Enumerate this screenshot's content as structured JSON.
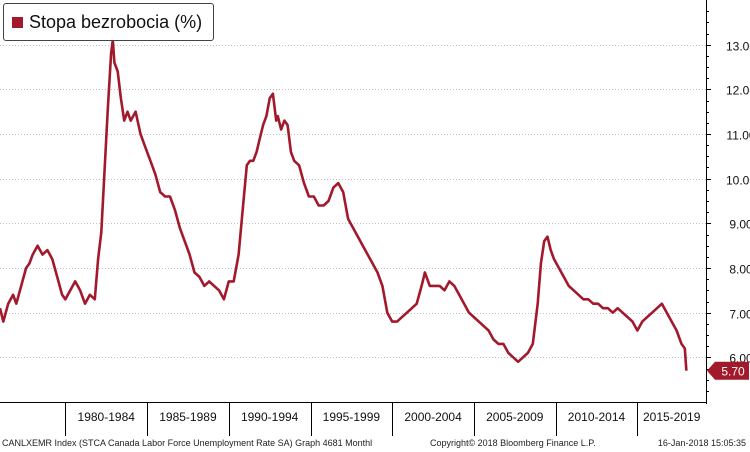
{
  "chart_data": {
    "type": "line",
    "title": "",
    "xlabel": "",
    "ylabel": "",
    "ylim": [
      5.0,
      14.0
    ],
    "y_ticks": [
      "6.00",
      "7.00",
      "8.00",
      "9.00",
      "10.00",
      "11.00",
      "12.00",
      "13.00"
    ],
    "period_labels": [
      "1980-1984",
      "1985-1989",
      "1990-1994",
      "1995-1999",
      "2000-2004",
      "2005-2009",
      "2010-2014",
      "2015-2019"
    ],
    "x_range": [
      1976.0,
      2019.2
    ],
    "grid": "horizontal dotted",
    "line_color": "#a3192c",
    "last_value_label": "5.70",
    "series": [
      {
        "name": "Stopa bezrobocia (%)",
        "x": [
          1976.0,
          1976.2,
          1976.5,
          1976.8,
          1977.0,
          1977.3,
          1977.6,
          1977.8,
          1978.0,
          1978.3,
          1978.6,
          1978.9,
          1979.2,
          1979.5,
          1979.8,
          1980.0,
          1980.3,
          1980.6,
          1980.9,
          1981.2,
          1981.5,
          1981.8,
          1982.0,
          1982.2,
          1982.4,
          1982.6,
          1982.8,
          1982.9,
          1983.0,
          1983.2,
          1983.4,
          1983.6,
          1983.8,
          1984.0,
          1984.3,
          1984.6,
          1984.9,
          1985.2,
          1985.5,
          1985.8,
          1986.1,
          1986.4,
          1986.7,
          1987.0,
          1987.3,
          1987.6,
          1987.9,
          1988.2,
          1988.5,
          1988.8,
          1989.1,
          1989.4,
          1989.7,
          1990.0,
          1990.3,
          1990.6,
          1990.9,
          1991.1,
          1991.3,
          1991.5,
          1991.7,
          1991.9,
          1992.1,
          1992.3,
          1992.5,
          1992.7,
          1992.9,
          1993.0,
          1993.2,
          1993.4,
          1993.6,
          1993.8,
          1994.0,
          1994.3,
          1994.6,
          1994.9,
          1995.2,
          1995.5,
          1995.8,
          1996.1,
          1996.4,
          1996.7,
          1997.0,
          1997.3,
          1997.6,
          1997.9,
          1998.2,
          1998.5,
          1998.8,
          1999.1,
          1999.4,
          1999.7,
          2000.0,
          2000.3,
          2000.6,
          2000.9,
          2001.2,
          2001.5,
          2001.8,
          2002.0,
          2002.3,
          2002.6,
          2002.9,
          2003.2,
          2003.5,
          2003.8,
          2004.1,
          2004.4,
          2004.7,
          2005.0,
          2005.3,
          2005.6,
          2005.9,
          2006.2,
          2006.5,
          2006.8,
          2007.1,
          2007.4,
          2007.7,
          2008.0,
          2008.3,
          2008.6,
          2008.9,
          2009.1,
          2009.3,
          2009.5,
          2009.7,
          2009.9,
          2010.2,
          2010.5,
          2010.8,
          2011.1,
          2011.4,
          2011.7,
          2012.0,
          2012.3,
          2012.6,
          2012.9,
          2013.2,
          2013.5,
          2013.8,
          2014.1,
          2014.4,
          2014.7,
          2015.0,
          2015.3,
          2015.6,
          2015.9,
          2016.2,
          2016.5,
          2016.8,
          2017.1,
          2017.4,
          2017.7,
          2017.9,
          2018.0
        ],
        "values": [
          7.1,
          6.8,
          7.2,
          7.4,
          7.2,
          7.6,
          8.0,
          8.1,
          8.3,
          8.5,
          8.3,
          8.4,
          8.2,
          7.8,
          7.4,
          7.3,
          7.5,
          7.7,
          7.5,
          7.2,
          7.4,
          7.3,
          8.2,
          8.8,
          10.2,
          11.6,
          12.8,
          13.1,
          12.6,
          12.4,
          11.8,
          11.3,
          11.5,
          11.3,
          11.5,
          11.0,
          10.7,
          10.4,
          10.1,
          9.7,
          9.6,
          9.6,
          9.3,
          8.9,
          8.6,
          8.3,
          7.9,
          7.8,
          7.6,
          7.7,
          7.6,
          7.5,
          7.3,
          7.7,
          7.7,
          8.3,
          9.5,
          10.3,
          10.4,
          10.4,
          10.6,
          10.9,
          11.2,
          11.4,
          11.8,
          11.9,
          11.3,
          11.4,
          11.1,
          11.3,
          11.2,
          10.6,
          10.4,
          10.3,
          9.9,
          9.6,
          9.6,
          9.4,
          9.4,
          9.5,
          9.8,
          9.9,
          9.7,
          9.1,
          8.9,
          8.7,
          8.5,
          8.3,
          8.1,
          7.9,
          7.6,
          7.0,
          6.8,
          6.8,
          6.9,
          7.0,
          7.1,
          7.2,
          7.6,
          7.9,
          7.6,
          7.6,
          7.6,
          7.5,
          7.7,
          7.6,
          7.4,
          7.2,
          7.0,
          6.9,
          6.8,
          6.7,
          6.6,
          6.4,
          6.3,
          6.3,
          6.1,
          6.0,
          5.9,
          6.0,
          6.1,
          6.3,
          7.2,
          8.1,
          8.6,
          8.7,
          8.4,
          8.2,
          8.0,
          7.8,
          7.6,
          7.5,
          7.4,
          7.3,
          7.3,
          7.2,
          7.2,
          7.1,
          7.1,
          7.0,
          7.1,
          7.0,
          6.9,
          6.8,
          6.6,
          6.8,
          6.9,
          7.0,
          7.1,
          7.2,
          7.0,
          6.8,
          6.6,
          6.3,
          6.2,
          5.7
        ]
      }
    ]
  },
  "footer": {
    "left": "CANLXEMR Index (STCA Canada Labor Force Unemployment Rate SA) Graph 4681  Monthl",
    "center": "Copyright© 2018 Bloomberg Finance L.P.",
    "right": "16-Jan-2018 15:05:35"
  }
}
